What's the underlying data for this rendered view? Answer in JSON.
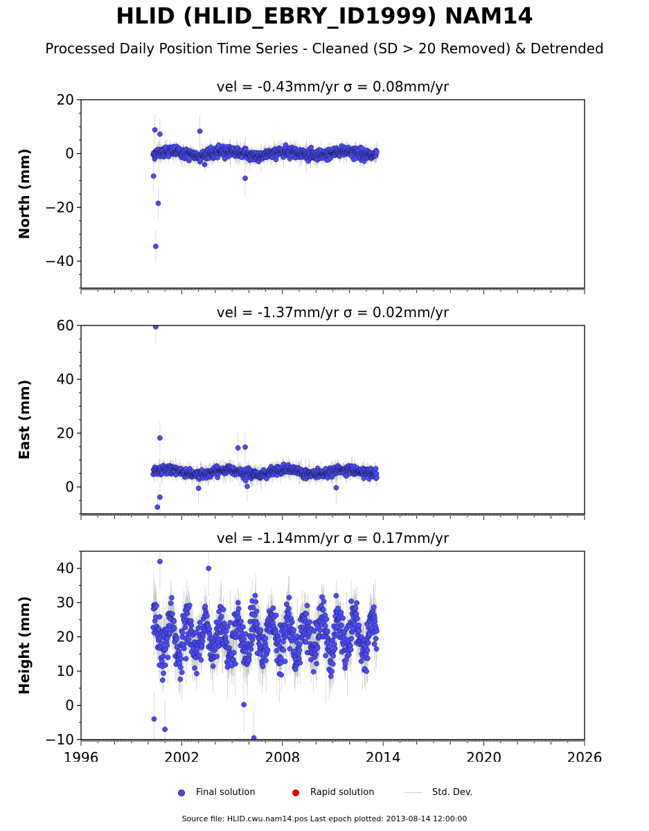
{
  "title": "HLID (HLID_EBRY_ID1999) NAM14",
  "subtitle": "Processed Daily Position Time Series - Cleaned (SD > 20 Removed) & Detrended",
  "legend": {
    "final": "Final solution",
    "rapid": "Rapid solution",
    "std": "Std. Dev."
  },
  "colors": {
    "final": "#4b4bff",
    "rapid": "#e00000",
    "std": "#aaaaaa"
  },
  "source": "Source file: HLID.cwu.nam14.pos  Last epoch plotted: 2013-08-14 12:00:00",
  "chart_data": [
    {
      "type": "scatter",
      "component": "north",
      "title": "vel = -0.43mm/yr   σ = 0.08mm/yr",
      "ylabel": "North (mm)",
      "xlim": [
        1996,
        2026
      ],
      "ylim": [
        -50,
        20
      ],
      "yticks": [
        20,
        0,
        -20,
        -40
      ],
      "ytick_labels": [
        "20",
        "0",
        "−20",
        "−40"
      ],
      "data_start": 2000.3,
      "data_end": 2013.62,
      "center": 0,
      "spread": 1.6,
      "outliers": [
        {
          "x": 2000.45,
          "y": -34.5
        },
        {
          "x": 2000.6,
          "y": -18.5
        },
        {
          "x": 2000.4,
          "y": 8.8
        },
        {
          "x": 2000.7,
          "y": 7.2
        },
        {
          "x": 2003.08,
          "y": 8.3
        },
        {
          "x": 2005.78,
          "y": -9.2
        },
        {
          "x": 2000.32,
          "y": -8.4
        }
      ]
    },
    {
      "type": "scatter",
      "component": "east",
      "title": "vel = -1.37mm/yr   σ = 0.02mm/yr",
      "ylabel": "East (mm)",
      "xlim": [
        1996,
        2026
      ],
      "ylim": [
        -10,
        60
      ],
      "yticks": [
        60,
        40,
        20,
        0
      ],
      "ytick_labels": [
        "60",
        "40",
        "20",
        "0"
      ],
      "data_start": 2000.3,
      "data_end": 2013.62,
      "center": 5.5,
      "spread": 1.3,
      "outliers": [
        {
          "x": 2000.45,
          "y": 59.5
        },
        {
          "x": 2000.7,
          "y": 18.2
        },
        {
          "x": 2005.35,
          "y": 14.5
        },
        {
          "x": 2005.78,
          "y": 14.8
        },
        {
          "x": 2000.55,
          "y": -7.5
        },
        {
          "x": 2000.7,
          "y": -3.8
        },
        {
          "x": 2003.0,
          "y": -0.5
        },
        {
          "x": 2011.2,
          "y": -0.3
        },
        {
          "x": 2005.9,
          "y": 0.2
        }
      ]
    },
    {
      "type": "scatter",
      "component": "height",
      "title": "vel = -1.14mm/yr   σ = 0.17mm/yr",
      "ylabel": "Height (mm)",
      "xlim": [
        1996,
        2026
      ],
      "ylim": [
        -10,
        45
      ],
      "yticks": [
        40,
        30,
        20,
        10,
        0,
        -10
      ],
      "ytick_labels": [
        "40",
        "30",
        "20",
        "10",
        "0",
        "−10"
      ],
      "xticks": [
        1996,
        2002,
        2008,
        2014,
        2020,
        2026
      ],
      "xtick_labels": [
        "1996",
        "2002",
        "2008",
        "2014",
        "2020",
        "2026"
      ],
      "data_start": 2000.3,
      "data_end": 2013.62,
      "center": 20,
      "spread": 6.5,
      "outliers": [
        {
          "x": 2000.7,
          "y": 42
        },
        {
          "x": 2003.6,
          "y": 40
        },
        {
          "x": 2006.3,
          "y": -9.5
        },
        {
          "x": 2001.0,
          "y": -7
        },
        {
          "x": 2005.7,
          "y": 0.2
        },
        {
          "x": 2000.35,
          "y": -4
        }
      ]
    }
  ]
}
